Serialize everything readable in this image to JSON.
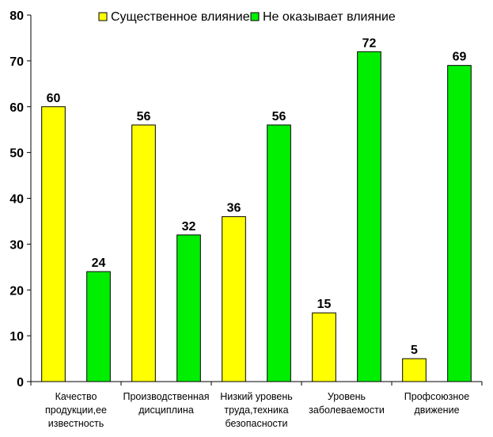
{
  "chart_data": {
    "type": "bar",
    "categories": [
      [
        "Качество",
        "продукции,ее",
        "известность"
      ],
      [
        "Производственная",
        "дисциплина"
      ],
      [
        "Низкий уровень",
        "труда,техника",
        "безопасности"
      ],
      [
        "Уровень",
        "заболеваемости"
      ],
      [
        "Профсоюзное",
        "движение"
      ]
    ],
    "series": [
      {
        "name": "Существенное влияние",
        "color": "#ffff00",
        "values": [
          60,
          56,
          36,
          15,
          5
        ]
      },
      {
        "name": "Не оказывает влияние",
        "color": "#00ee00",
        "values": [
          24,
          32,
          56,
          72,
          69
        ]
      }
    ],
    "ylim": [
      0,
      80
    ],
    "yticks": [
      0,
      10,
      20,
      30,
      40,
      50,
      60,
      70,
      80
    ],
    "grid": false,
    "legend_position": "top-center",
    "data_labels": true
  }
}
